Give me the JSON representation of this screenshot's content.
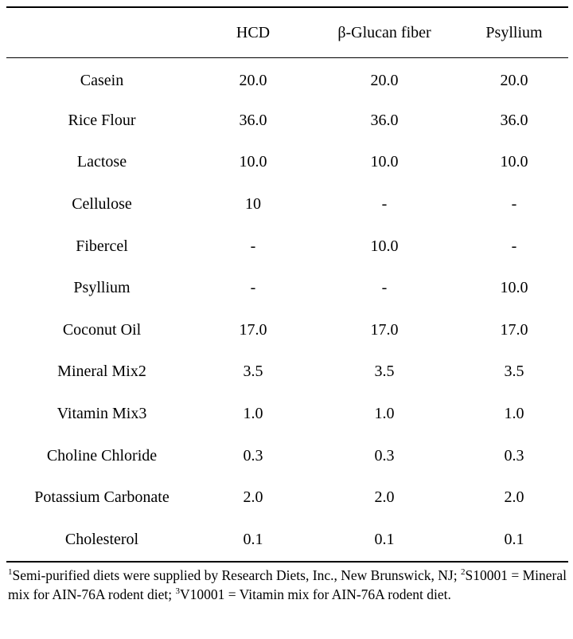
{
  "table": {
    "headers": [
      "",
      "HCD",
      "β-Glucan fiber",
      "Psyllium"
    ],
    "rows": [
      {
        "label": "Casein",
        "values": [
          "20.0",
          "20.0",
          "20.0"
        ]
      },
      {
        "label": "Rice Flour",
        "values": [
          "36.0",
          "36.0",
          "36.0"
        ]
      },
      {
        "label": "Lactose",
        "values": [
          "10.0",
          "10.0",
          "10.0"
        ]
      },
      {
        "label": "Cellulose",
        "values": [
          "10",
          "-",
          "-"
        ]
      },
      {
        "label": "Fibercel",
        "values": [
          "-",
          "10.0",
          "-"
        ]
      },
      {
        "label": "Psyllium",
        "values": [
          "-",
          "-",
          "10.0"
        ]
      },
      {
        "label": "Coconut Oil",
        "values": [
          "17.0",
          "17.0",
          "17.0"
        ]
      },
      {
        "label": "Mineral Mix2",
        "values": [
          "3.5",
          "3.5",
          "3.5"
        ]
      },
      {
        "label": "Vitamin Mix3",
        "values": [
          "1.0",
          "1.0",
          "1.0"
        ]
      },
      {
        "label": "Choline Chloride",
        "values": [
          "0.3",
          "0.3",
          "0.3"
        ]
      },
      {
        "label": "Potassium Carbonate",
        "values": [
          "2.0",
          "2.0",
          "2.0"
        ]
      },
      {
        "label": "Cholesterol",
        "values": [
          "0.1",
          "0.1",
          "0.1"
        ]
      }
    ]
  },
  "footnote": {
    "note1_marker": "1",
    "note1_text": "Semi-purified diets were supplied by Research Diets, Inc., New Brunswick, NJ; ",
    "note2_marker": "2",
    "note2_text": "S10001 = Mineral mix for AIN-76A rodent diet; ",
    "note3_marker": "3",
    "note3_text": "V10001 = Vitamin mix for AIN-76A rodent diet."
  }
}
